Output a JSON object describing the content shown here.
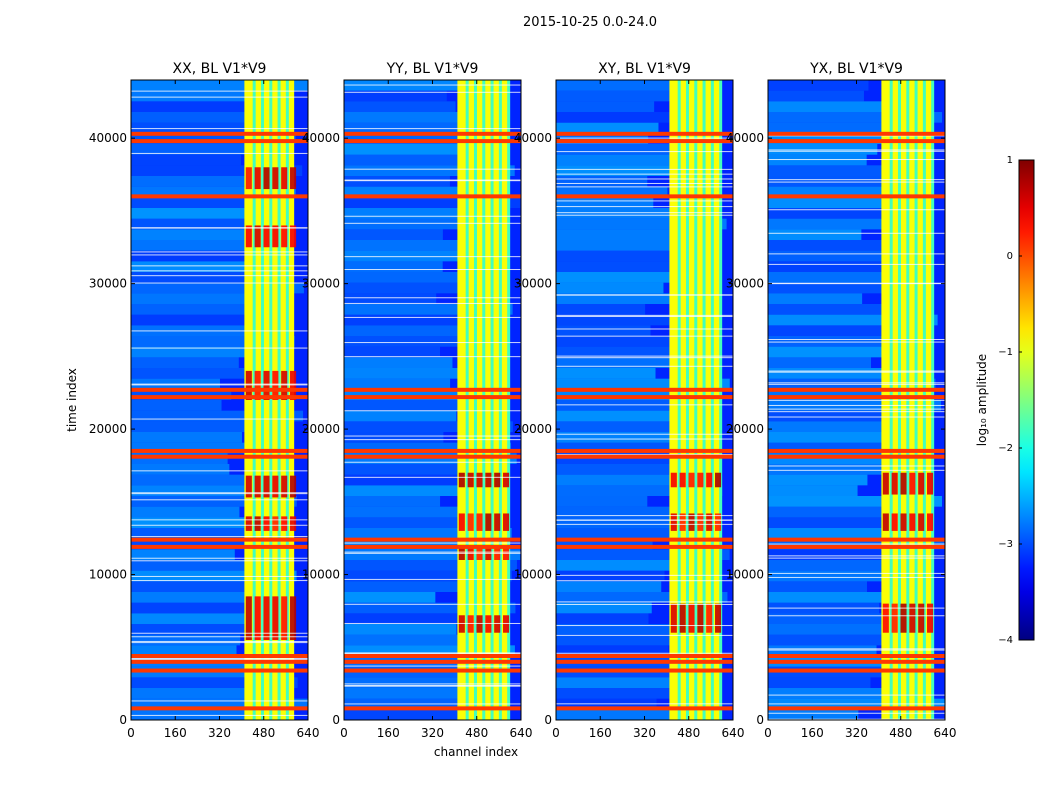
{
  "chart_data": {
    "type": "heatmap",
    "suptitle": "2015-10-25 0.0-24.0",
    "xlabel": "channel index",
    "ylabel": "time index",
    "xlim": [
      0,
      640
    ],
    "ylim": [
      0,
      44000
    ],
    "xticks": [
      0,
      160,
      320,
      480,
      640
    ],
    "yticks": [
      0,
      10000,
      20000,
      30000,
      40000
    ],
    "panels": [
      {
        "title": "XX, BL V1*V9",
        "channel_flag_ranges": [
          [
            410,
            590
          ]
        ],
        "bright_rows": [
          800,
          3400,
          4000,
          4400,
          11900,
          12400,
          18100,
          18500,
          22200,
          22700,
          36000,
          39800,
          40300
        ],
        "high_blocks": [
          [
            13000,
            14000
          ],
          [
            15300,
            16800
          ],
          [
            22000,
            24000
          ],
          [
            32500,
            34000
          ],
          [
            36500,
            38000
          ],
          [
            5500,
            8500
          ]
        ]
      },
      {
        "title": "YY, BL V1*V9",
        "channel_flag_ranges": [
          [
            410,
            600
          ]
        ],
        "bright_rows": [
          800,
          3400,
          4000,
          4400,
          11900,
          12400,
          18100,
          18500,
          22200,
          22700,
          36000,
          39800,
          40300
        ],
        "high_blocks": [
          [
            13000,
            14200
          ],
          [
            16000,
            17000
          ],
          [
            6000,
            7200
          ],
          [
            11000,
            12000
          ]
        ]
      },
      {
        "title": "XY, BL V1*V9",
        "channel_flag_ranges": [
          [
            410,
            600
          ]
        ],
        "bright_rows": [
          800,
          3400,
          4000,
          4400,
          11900,
          12400,
          18100,
          18500,
          22200,
          22700,
          36000,
          39800,
          40300
        ],
        "high_blocks": [
          [
            13000,
            14200
          ],
          [
            16000,
            17000
          ],
          [
            6000,
            8000
          ]
        ]
      },
      {
        "title": "YX, BL V1*V9",
        "channel_flag_ranges": [
          [
            410,
            600
          ]
        ],
        "bright_rows": [
          800,
          3400,
          4000,
          4400,
          11900,
          12400,
          18100,
          18500,
          22200,
          22700,
          36000,
          39800,
          40300
        ],
        "high_blocks": [
          [
            13000,
            14200
          ],
          [
            15500,
            17000
          ],
          [
            6000,
            8000
          ]
        ]
      }
    ],
    "colorbar": {
      "label": "log₁₀ amplitude",
      "range": [
        -4,
        1
      ],
      "ticks": [
        1,
        0,
        -1,
        -2,
        -3,
        -4
      ],
      "colormap": "jet"
    }
  }
}
